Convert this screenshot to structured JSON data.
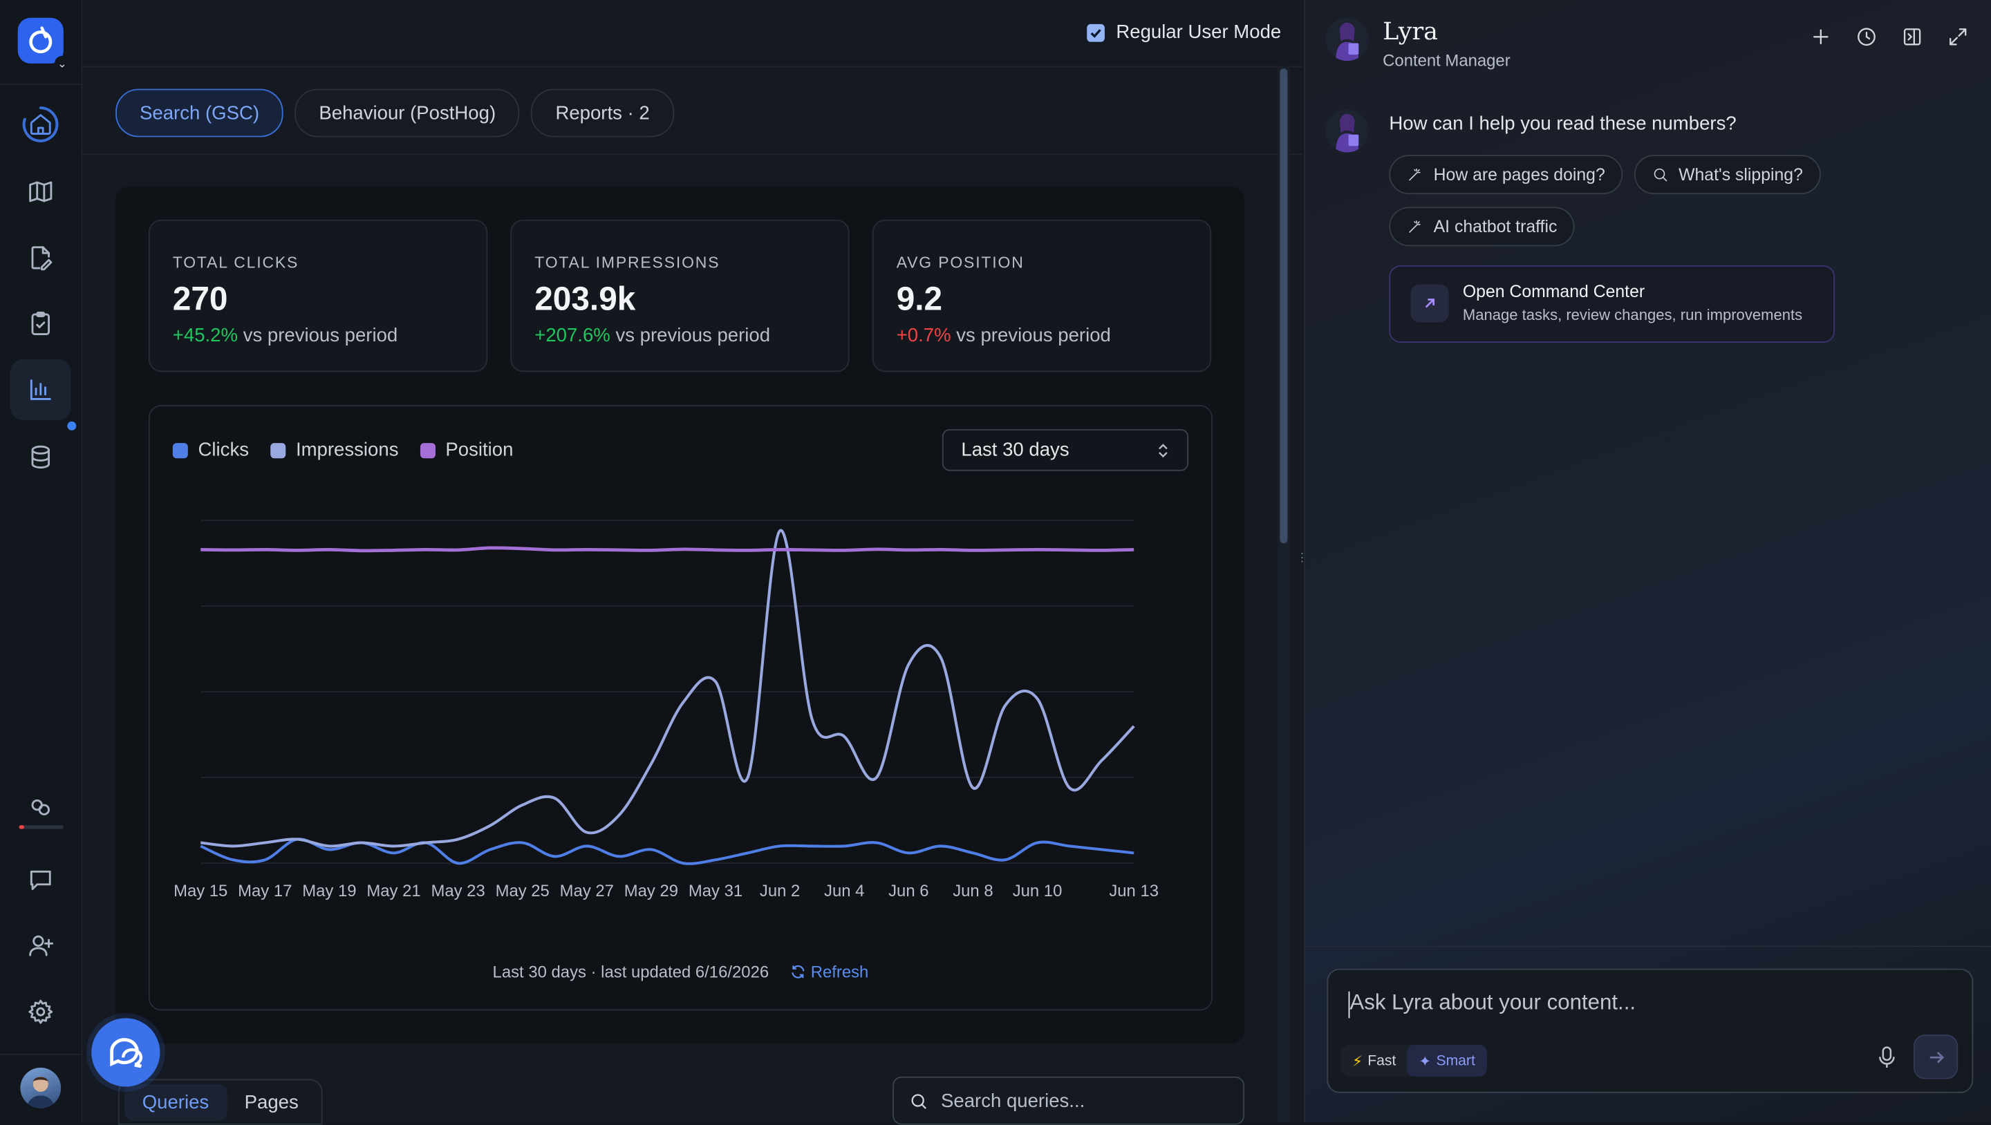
{
  "header": {
    "regular_mode_label": "Regular User Mode",
    "regular_mode_checked": true
  },
  "tabs": [
    {
      "label": "Search (GSC)",
      "active": true
    },
    {
      "label": "Behaviour (PostHog)",
      "active": false
    },
    {
      "label": "Reports · 2",
      "active": false
    }
  ],
  "stats": [
    {
      "label": "TOTAL CLICKS",
      "value": "270",
      "delta": "+45.2%",
      "delta_suffix": "vs previous period",
      "trend": "up"
    },
    {
      "label": "TOTAL IMPRESSIONS",
      "value": "203.9k",
      "delta": "+207.6%",
      "delta_suffix": "vs previous period",
      "trend": "up"
    },
    {
      "label": "AVG POSITION",
      "value": "9.2",
      "delta": "+0.7%",
      "delta_suffix": "vs previous period",
      "trend": "down"
    }
  ],
  "chart": {
    "range_label": "Last 30 days",
    "footer": "Last 30 days · last updated 6/16/2026",
    "refresh_label": "Refresh"
  },
  "chart_data": {
    "type": "line",
    "title": "",
    "x": [
      "May 15",
      "May 16",
      "May 17",
      "May 18",
      "May 19",
      "May 20",
      "May 21",
      "May 22",
      "May 23",
      "May 24",
      "May 25",
      "May 26",
      "May 27",
      "May 28",
      "May 29",
      "May 30",
      "May 31",
      "Jun 1",
      "Jun 2",
      "Jun 3",
      "Jun 4",
      "Jun 5",
      "Jun 6",
      "Jun 7",
      "Jun 8",
      "Jun 9",
      "Jun 10",
      "Jun 11",
      "Jun 12",
      "Jun 13"
    ],
    "x_tick_labels": [
      "May 15",
      "May 17",
      "May 19",
      "May 21",
      "May 23",
      "May 25",
      "May 27",
      "May 29",
      "May 31",
      "Jun 2",
      "Jun 4",
      "Jun 6",
      "Jun 8",
      "Jun 10",
      "Jun 13"
    ],
    "y_normalized_range": [
      0,
      1
    ],
    "grid": true,
    "legend_position": "top-left",
    "series": [
      {
        "name": "Clicks",
        "color": "#4f7fe6",
        "values": [
          0.05,
          0.01,
          0.01,
          0.07,
          0.04,
          0.06,
          0.03,
          0.06,
          0.0,
          0.04,
          0.06,
          0.02,
          0.05,
          0.02,
          0.04,
          0.0,
          0.01,
          0.03,
          0.05,
          0.05,
          0.05,
          0.06,
          0.03,
          0.05,
          0.03,
          0.01,
          0.06,
          0.05,
          0.04,
          0.03
        ]
      },
      {
        "name": "Impressions",
        "color": "#9aa8e0",
        "values": [
          0.06,
          0.05,
          0.06,
          0.07,
          0.05,
          0.06,
          0.05,
          0.06,
          0.07,
          0.11,
          0.17,
          0.19,
          0.09,
          0.14,
          0.29,
          0.47,
          0.53,
          0.25,
          0.97,
          0.42,
          0.37,
          0.25,
          0.58,
          0.6,
          0.22,
          0.46,
          0.48,
          0.22,
          0.3,
          0.4
        ]
      },
      {
        "name": "Position",
        "color": "#a470d8",
        "values": [
          0.915,
          0.914,
          0.915,
          0.913,
          0.915,
          0.912,
          0.913,
          0.915,
          0.914,
          0.92,
          0.918,
          0.914,
          0.915,
          0.914,
          0.913,
          0.916,
          0.914,
          0.913,
          0.915,
          0.914,
          0.913,
          0.916,
          0.914,
          0.915,
          0.913,
          0.914,
          0.915,
          0.914,
          0.913,
          0.915
        ]
      }
    ]
  },
  "table_tabs": [
    {
      "label": "Queries",
      "active": true
    },
    {
      "label": "Pages",
      "active": false
    }
  ],
  "table_search": {
    "placeholder": "Search queries..."
  },
  "assistant": {
    "name": "Lyra",
    "role": "Content Manager",
    "greeting": "How can I help you read these numbers?",
    "suggestions": [
      {
        "label": "How are pages doing?",
        "icon": "wand-icon"
      },
      {
        "label": "What's slipping?",
        "icon": "search-icon"
      },
      {
        "label": "AI chatbot traffic",
        "icon": "wand-icon"
      }
    ],
    "command_center": {
      "title": "Open Command Center",
      "subtitle": "Manage tasks, review changes, run improvements"
    },
    "composer": {
      "placeholder": "Ask Lyra about your content...",
      "modes": [
        "Fast",
        "Smart"
      ],
      "active_mode": "Smart"
    }
  },
  "rail": {
    "nav_icons": [
      "home-icon",
      "map-icon",
      "page-edit-icon",
      "clipboard-check-icon",
      "bar-chart-icon",
      "database-icon"
    ],
    "bottom_icons": [
      "link-icon",
      "chat-icon",
      "add-user-icon",
      "gear-icon"
    ],
    "usage_fraction": 0.1
  },
  "colors": {
    "accent": "#3b82f6",
    "positive": "#22c55e",
    "negative": "#ef4444",
    "clicks": "#4f7fe6",
    "impressions": "#9aa8e0",
    "position": "#a470d8"
  }
}
